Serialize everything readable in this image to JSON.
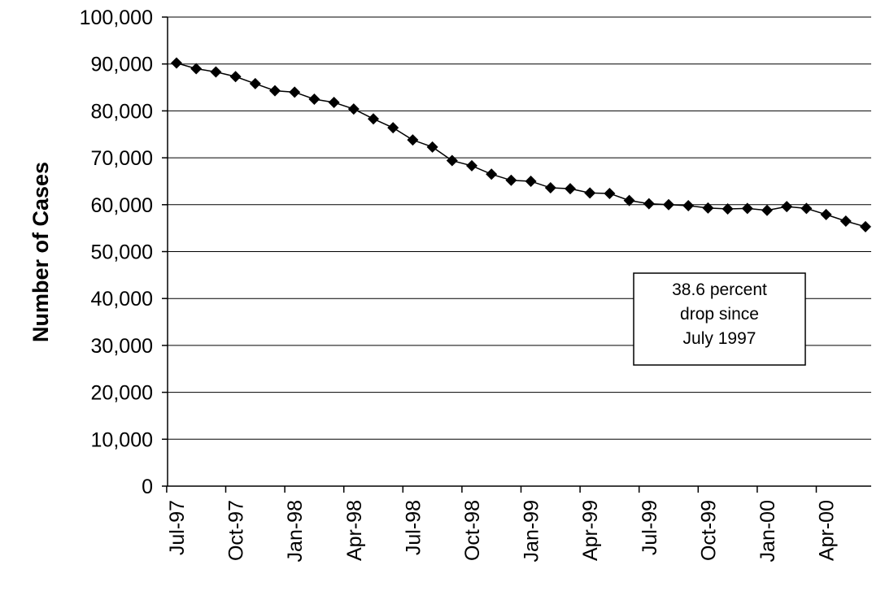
{
  "chart_data": {
    "type": "line",
    "title": "",
    "xlabel": "",
    "ylabel": "Number of Cases",
    "ylim": [
      0,
      100000
    ],
    "y_ticks": [
      "0",
      "10,000",
      "20,000",
      "30,000",
      "40,000",
      "50,000",
      "60,000",
      "70,000",
      "80,000",
      "90,000",
      "100,000"
    ],
    "x_tick_labels": [
      "Jul-97",
      "Oct-97",
      "Jan-98",
      "Apr-98",
      "Jul-98",
      "Oct-98",
      "Jan-99",
      "Apr-99",
      "Jul-99",
      "Oct-99",
      "Jan-00",
      "Apr-00"
    ],
    "grid": "horizontal",
    "marker": "diamond",
    "series_color": "#000000",
    "x": [
      "Jul-97",
      "Aug-97",
      "Sep-97",
      "Oct-97",
      "Nov-97",
      "Dec-97",
      "Jan-98",
      "Feb-98",
      "Mar-98",
      "Apr-98",
      "May-98",
      "Jun-98",
      "Jul-98",
      "Aug-98",
      "Sep-98",
      "Oct-98",
      "Nov-98",
      "Dec-98",
      "Jan-99",
      "Feb-99",
      "Mar-99",
      "Apr-99",
      "May-99",
      "Jun-99",
      "Jul-99",
      "Aug-99",
      "Sep-99",
      "Oct-99",
      "Nov-99",
      "Dec-99",
      "Jan-00",
      "Feb-00",
      "Mar-00",
      "Apr-00",
      "May-00",
      "Jun-00"
    ],
    "series": [
      {
        "values": [
          90200,
          89000,
          88300,
          87300,
          85800,
          84300,
          84000,
          82500,
          81800,
          80400,
          78300,
          76400,
          73800,
          72300,
          69400,
          68300,
          66500,
          65200,
          65000,
          63600,
          63400,
          62500,
          62400,
          60900,
          60200,
          60000,
          59800,
          59300,
          59100,
          59200,
          58800,
          59600,
          59200,
          57900,
          56500,
          55300
        ]
      }
    ],
    "annotation": {
      "lines": [
        "38.6 percent",
        "drop since",
        "July 1997"
      ]
    }
  }
}
